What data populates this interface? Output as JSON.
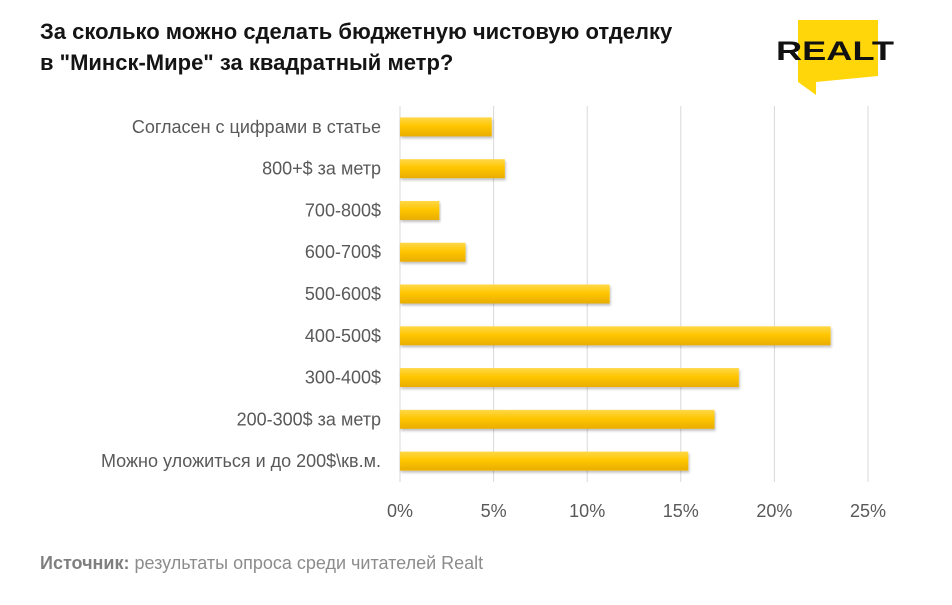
{
  "title_line1": "За сколько можно сделать бюджетную чистовую отделку",
  "title_line2": "в \"Минск-Мире\" за квадратный метр?",
  "logo_text": "REALT",
  "source": {
    "label": "Источник:",
    "text": " результаты опроса среди читателей Realt"
  },
  "colors": {
    "bar": "#ffc600",
    "bar_dark": "#f2b600",
    "grid": "#d9d9d9",
    "logo_yellow": "#ffd60a",
    "logo_text": "#111111"
  },
  "chart_data": {
    "type": "bar",
    "orientation": "horizontal",
    "categories": [
      "Согласен с цифрами в статье",
      "800+$ за метр",
      "700-800$",
      "600-700$",
      "500-600$",
      "400-500$",
      "300-400$",
      "200-300$ за метр",
      "Можно уложиться и до 200$\\кв.м."
    ],
    "values": [
      4.9,
      5.6,
      2.1,
      3.5,
      11.2,
      23.0,
      18.1,
      16.8,
      15.4
    ],
    "unit": "%",
    "xlim": [
      0,
      25
    ],
    "ticks": [
      0,
      5,
      10,
      15,
      20,
      25
    ],
    "tick_labels": [
      "0%",
      "5%",
      "10%",
      "15%",
      "20%",
      "25%"
    ],
    "grid": true,
    "legend": false
  }
}
